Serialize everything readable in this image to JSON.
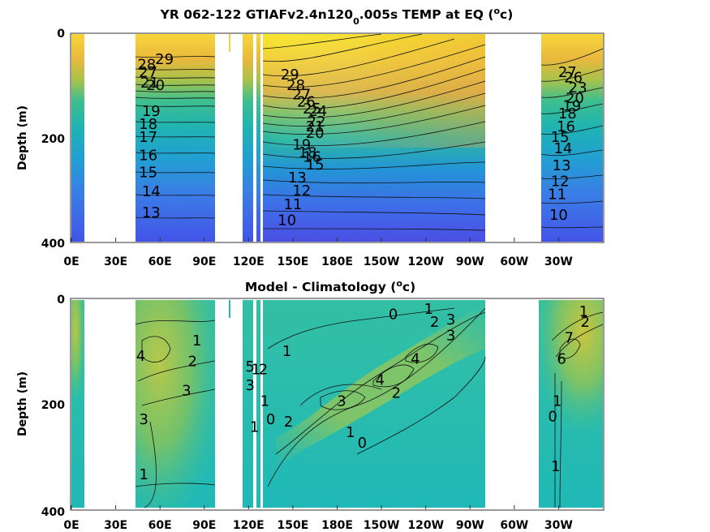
{
  "chart_data": [
    {
      "type": "heatmap",
      "title_main": "YR 062-122 GTIAFv2.4n120",
      "title_sub": "0",
      "title_tail": ".005s TEMP at EQ (",
      "title_unit_sup": "o",
      "title_unit_end": "c)",
      "ylabel": "Depth (m)",
      "xlabel": "",
      "xtick_labels": [
        "0E",
        "30E",
        "60E",
        "90E",
        "120E",
        "150E",
        "180E",
        "150W",
        "120W",
        "90W",
        "60W",
        "30W"
      ],
      "ytick_labels": [
        "0",
        "200",
        "400"
      ],
      "ylim": [
        400,
        0
      ],
      "xlim": [
        0,
        360
      ],
      "colormap": "parula",
      "color_range": [
        8,
        30
      ],
      "contour_labels": [
        {
          "text": "29",
          "lon": 63,
          "depth": 50
        },
        {
          "text": "28",
          "lon": 51,
          "depth": 60
        },
        {
          "text": "27",
          "lon": 52,
          "depth": 75
        },
        {
          "text": "21",
          "lon": 53,
          "depth": 95
        },
        {
          "text": "20",
          "lon": 57,
          "depth": 100
        },
        {
          "text": "19",
          "lon": 54,
          "depth": 150
        },
        {
          "text": "18",
          "lon": 52,
          "depth": 175
        },
        {
          "text": "17",
          "lon": 52,
          "depth": 200
        },
        {
          "text": "16",
          "lon": 52,
          "depth": 235
        },
        {
          "text": "15",
          "lon": 52,
          "depth": 268
        },
        {
          "text": "14",
          "lon": 54,
          "depth": 305
        },
        {
          "text": "13",
          "lon": 54,
          "depth": 345
        },
        {
          "text": "29",
          "lon": 148,
          "depth": 80
        },
        {
          "text": "28",
          "lon": 152,
          "depth": 100
        },
        {
          "text": "27",
          "lon": 156,
          "depth": 118
        },
        {
          "text": "26",
          "lon": 159,
          "depth": 132
        },
        {
          "text": "25",
          "lon": 163,
          "depth": 145
        },
        {
          "text": "24",
          "lon": 167,
          "depth": 150
        },
        {
          "text": "22",
          "lon": 166,
          "depth": 170
        },
        {
          "text": "21",
          "lon": 165,
          "depth": 180
        },
        {
          "text": "20",
          "lon": 165,
          "depth": 192
        },
        {
          "text": "19",
          "lon": 156,
          "depth": 215
        },
        {
          "text": "18",
          "lon": 160,
          "depth": 230
        },
        {
          "text": "16",
          "lon": 163,
          "depth": 238
        },
        {
          "text": "15",
          "lon": 165,
          "depth": 253
        },
        {
          "text": "13",
          "lon": 153,
          "depth": 278
        },
        {
          "text": "12",
          "lon": 156,
          "depth": 303
        },
        {
          "text": "11",
          "lon": 150,
          "depth": 330
        },
        {
          "text": "10",
          "lon": 146,
          "depth": 360
        },
        {
          "text": "27",
          "lon": 336,
          "depth": 75
        },
        {
          "text": "26",
          "lon": 340,
          "depth": 85
        },
        {
          "text": "23",
          "lon": 343,
          "depth": 105
        },
        {
          "text": "20",
          "lon": 341,
          "depth": 125
        },
        {
          "text": "19",
          "lon": 339,
          "depth": 140
        },
        {
          "text": "18",
          "lon": 336,
          "depth": 155
        },
        {
          "text": "16",
          "lon": 335,
          "depth": 180
        },
        {
          "text": "15",
          "lon": 331,
          "depth": 200
        },
        {
          "text": "14",
          "lon": 333,
          "depth": 222
        },
        {
          "text": "13",
          "lon": 332,
          "depth": 255
        },
        {
          "text": "12",
          "lon": 331,
          "depth": 285
        },
        {
          "text": "11",
          "lon": 329,
          "depth": 310
        },
        {
          "text": "10",
          "lon": 330,
          "depth": 350
        }
      ]
    },
    {
      "type": "heatmap",
      "title_main": "Model - Climatology (",
      "title_unit_sup": "o",
      "title_unit_end": "c)",
      "ylabel": "Depth (m)",
      "xlabel": "",
      "xtick_labels": [
        "0E",
        "30E",
        "60E",
        "90E",
        "120E",
        "150E",
        "180E",
        "150W",
        "120W",
        "90W",
        "60W",
        "30W"
      ],
      "ytick_labels": [
        "0",
        "200",
        "400"
      ],
      "ylim": [
        400,
        0
      ],
      "xlim": [
        0,
        360
      ],
      "colormap": "parula",
      "color_range": [
        -4,
        8
      ],
      "contour_labels": [
        {
          "text": "4",
          "lon": 47,
          "depth": 110
        },
        {
          "text": "1",
          "lon": 85,
          "depth": 80
        },
        {
          "text": "2",
          "lon": 82,
          "depth": 120
        },
        {
          "text": "3",
          "lon": 78,
          "depth": 175
        },
        {
          "text": "3",
          "lon": 49,
          "depth": 230
        },
        {
          "text": "1",
          "lon": 49,
          "depth": 335
        },
        {
          "text": "1",
          "lon": 146,
          "depth": 100
        },
        {
          "text": "5",
          "lon": 121,
          "depth": 130
        },
        {
          "text": "1",
          "lon": 125,
          "depth": 135
        },
        {
          "text": "2",
          "lon": 130,
          "depth": 135
        },
        {
          "text": "3",
          "lon": 121,
          "depth": 165
        },
        {
          "text": "1",
          "lon": 131,
          "depth": 195
        },
        {
          "text": "0",
          "lon": 135,
          "depth": 230
        },
        {
          "text": "1",
          "lon": 124,
          "depth": 245
        },
        {
          "text": "2",
          "lon": 147,
          "depth": 235
        },
        {
          "text": "3",
          "lon": 183,
          "depth": 195
        },
        {
          "text": "1",
          "lon": 189,
          "depth": 255
        },
        {
          "text": "0",
          "lon": 197,
          "depth": 275
        },
        {
          "text": "4",
          "lon": 209,
          "depth": 155
        },
        {
          "text": "2",
          "lon": 220,
          "depth": 180
        },
        {
          "text": "4",
          "lon": 233,
          "depth": 115
        },
        {
          "text": "0",
          "lon": 218,
          "depth": 30
        },
        {
          "text": "1",
          "lon": 242,
          "depth": 20
        },
        {
          "text": "2",
          "lon": 246,
          "depth": 45
        },
        {
          "text": "3",
          "lon": 257,
          "depth": 40
        },
        {
          "text": "3",
          "lon": 257,
          "depth": 70
        },
        {
          "text": "1",
          "lon": 347,
          "depth": 25
        },
        {
          "text": "2",
          "lon": 348,
          "depth": 45
        },
        {
          "text": "7",
          "lon": 337,
          "depth": 75
        },
        {
          "text": "6",
          "lon": 332,
          "depth": 115
        },
        {
          "text": "0",
          "lon": 326,
          "depth": 225
        },
        {
          "text": "1",
          "lon": 329,
          "depth": 195
        },
        {
          "text": "1",
          "lon": 328,
          "depth": 320
        }
      ]
    }
  ]
}
